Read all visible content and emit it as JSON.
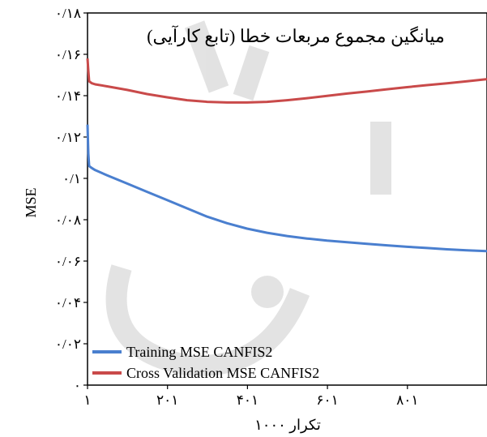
{
  "chart_data": {
    "type": "line",
    "title": "میانگین مجموع مربعات خطا (تابع کارآیی)",
    "xlabel": "تکرار ۱۰۰۰",
    "ylabel": "MSE",
    "xlim": [
      1,
      1000
    ],
    "ylim": [
      0,
      0.18
    ],
    "x_ticks": [
      {
        "value": 1,
        "label": "۱"
      },
      {
        "value": 201,
        "label": "۲۰۱"
      },
      {
        "value": 401,
        "label": "۴۰۱"
      },
      {
        "value": 601,
        "label": "۶۰۱"
      },
      {
        "value": 801,
        "label": "۸۰۱"
      }
    ],
    "y_ticks": [
      {
        "value": 0,
        "label": "۰"
      },
      {
        "value": 0.02,
        "label": "۰/۰۲"
      },
      {
        "value": 0.04,
        "label": "۰/۰۴"
      },
      {
        "value": 0.06,
        "label": "۰/۰۶"
      },
      {
        "value": 0.08,
        "label": "۰/۰۸"
      },
      {
        "value": 0.1,
        "label": "۰/۱"
      },
      {
        "value": 0.12,
        "label": "۰/۱۲"
      },
      {
        "value": 0.14,
        "label": "۰/۱۴"
      },
      {
        "value": 0.16,
        "label": "۰/۱۶"
      },
      {
        "value": 0.18,
        "label": "۰/۱۸"
      }
    ],
    "legend_position": "bottom-left",
    "grid": false,
    "series": [
      {
        "name": "Training MSE CANFIS2",
        "color": "#4a7fcf",
        "x": [
          1,
          3,
          5,
          8,
          12,
          20,
          50,
          100,
          150,
          200,
          250,
          300,
          350,
          400,
          450,
          500,
          550,
          600,
          650,
          700,
          750,
          800,
          850,
          900,
          950,
          1000
        ],
        "y": [
          0.126,
          0.112,
          0.106,
          0.1055,
          0.105,
          0.104,
          0.1015,
          0.0975,
          0.0935,
          0.0895,
          0.0855,
          0.0815,
          0.0783,
          0.0757,
          0.0737,
          0.0721,
          0.0709,
          0.0699,
          0.0691,
          0.0683,
          0.0676,
          0.0669,
          0.0663,
          0.0657,
          0.0652,
          0.0648
        ]
      },
      {
        "name": "Cross Validation MSE CANFIS2",
        "color": "#c94a4a",
        "x": [
          1,
          3,
          5,
          8,
          12,
          20,
          50,
          100,
          150,
          200,
          250,
          300,
          350,
          400,
          450,
          500,
          550,
          600,
          650,
          700,
          750,
          800,
          850,
          900,
          950,
          1000
        ],
        "y": [
          0.158,
          0.152,
          0.147,
          0.1465,
          0.146,
          0.1455,
          0.1445,
          0.1428,
          0.1408,
          0.1392,
          0.1378,
          0.137,
          0.1367,
          0.1367,
          0.137,
          0.1378,
          0.1388,
          0.1399,
          0.141,
          0.142,
          0.1431,
          0.1441,
          0.1451,
          0.146,
          0.147,
          0.148
        ]
      }
    ]
  }
}
